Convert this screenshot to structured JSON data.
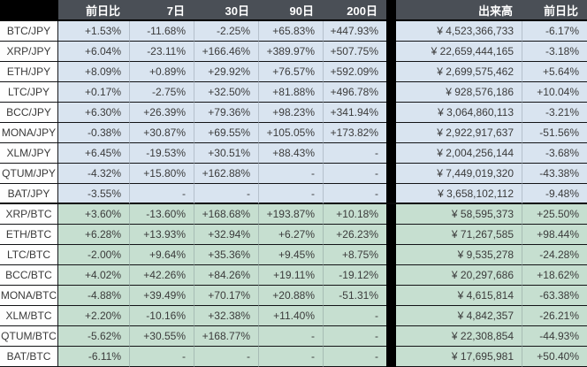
{
  "table": {
    "header": {
      "corner": "",
      "columns": [
        "前日比",
        "7日",
        "30日",
        "90日",
        "200日"
      ],
      "volume_columns": [
        "出来高",
        "前日比"
      ]
    },
    "rows": [
      {
        "pair": "BTC/JPY",
        "section": "jpy",
        "cells": [
          "+1.53%",
          "-11.68%",
          "-2.25%",
          "+65.83%",
          "+447.93%"
        ],
        "volume": "¥ 4,523,366,733",
        "volume_change": "-6.17%"
      },
      {
        "pair": "XRP/JPY",
        "section": "jpy",
        "cells": [
          "+6.04%",
          "-23.11%",
          "+166.46%",
          "+389.97%",
          "+507.75%"
        ],
        "volume": "¥ 22,659,444,165",
        "volume_change": "-3.18%"
      },
      {
        "pair": "ETH/JPY",
        "section": "jpy",
        "cells": [
          "+8.09%",
          "+0.89%",
          "+29.92%",
          "+76.57%",
          "+592.09%"
        ],
        "volume": "¥ 2,699,575,462",
        "volume_change": "+5.64%"
      },
      {
        "pair": "LTC/JPY",
        "section": "jpy",
        "cells": [
          "+0.17%",
          "-2.75%",
          "+32.50%",
          "+81.88%",
          "+496.78%"
        ],
        "volume": "¥ 928,576,186",
        "volume_change": "+10.04%"
      },
      {
        "pair": "BCC/JPY",
        "section": "jpy",
        "cells": [
          "+6.30%",
          "+26.39%",
          "+79.36%",
          "+98.23%",
          "+341.94%"
        ],
        "volume": "¥ 3,064,860,113",
        "volume_change": "-3.21%"
      },
      {
        "pair": "MONA/JPY",
        "section": "jpy",
        "cells": [
          "-0.38%",
          "+30.87%",
          "+69.55%",
          "+105.05%",
          "+173.82%"
        ],
        "volume": "¥ 2,922,917,637",
        "volume_change": "-51.56%"
      },
      {
        "pair": "XLM/JPY",
        "section": "jpy",
        "cells": [
          "+6.45%",
          "-19.53%",
          "+30.51%",
          "+88.43%",
          "-"
        ],
        "volume": "¥ 2,004,256,144",
        "volume_change": "-3.68%"
      },
      {
        "pair": "QTUM/JPY",
        "section": "jpy",
        "cells": [
          "-4.32%",
          "+15.80%",
          "+162.88%",
          "-",
          "-"
        ],
        "volume": "¥ 7,449,019,320",
        "volume_change": "-43.38%"
      },
      {
        "pair": "BAT/JPY",
        "section": "jpy",
        "cells": [
          "-3.55%",
          "-",
          "-",
          "-",
          "-"
        ],
        "volume": "¥ 3,658,102,112",
        "volume_change": "-9.48%"
      },
      {
        "pair": "XRP/BTC",
        "section": "btc",
        "cells": [
          "+3.60%",
          "-13.60%",
          "+168.68%",
          "+193.87%",
          "+10.18%"
        ],
        "volume": "¥ 58,595,373",
        "volume_change": "+25.50%"
      },
      {
        "pair": "ETH/BTC",
        "section": "btc",
        "cells": [
          "+6.28%",
          "+13.93%",
          "+32.94%",
          "+6.27%",
          "+26.23%"
        ],
        "volume": "¥ 71,267,585",
        "volume_change": "+98.44%"
      },
      {
        "pair": "LTC/BTC",
        "section": "btc",
        "cells": [
          "-2.00%",
          "+9.64%",
          "+35.36%",
          "+9.45%",
          "+8.75%"
        ],
        "volume": "¥ 9,535,278",
        "volume_change": "-24.28%"
      },
      {
        "pair": "BCC/BTC",
        "section": "btc",
        "cells": [
          "+4.02%",
          "+42.26%",
          "+84.26%",
          "+19.11%",
          "-19.12%"
        ],
        "volume": "¥ 20,297,686",
        "volume_change": "+18.62%"
      },
      {
        "pair": "MONA/BTC",
        "section": "btc",
        "cells": [
          "-4.88%",
          "+39.49%",
          "+70.17%",
          "+20.88%",
          "-51.31%"
        ],
        "volume": "¥ 4,615,814",
        "volume_change": "-63.38%"
      },
      {
        "pair": "XLM/BTC",
        "section": "btc",
        "cells": [
          "+2.20%",
          "-10.16%",
          "+32.38%",
          "+11.40%",
          "-"
        ],
        "volume": "¥ 4,842,357",
        "volume_change": "-26.21%"
      },
      {
        "pair": "QTUM/BTC",
        "section": "btc",
        "cells": [
          "-5.62%",
          "+30.55%",
          "+168.77%",
          "-",
          "-"
        ],
        "volume": "¥ 22,308,854",
        "volume_change": "-44.93%"
      },
      {
        "pair": "BAT/BTC",
        "section": "btc",
        "cells": [
          "-6.11%",
          "-",
          "-",
          "-",
          "-"
        ],
        "volume": "¥ 17,695,981",
        "volume_change": "+50.40%"
      }
    ]
  },
  "colors": {
    "background": "#000000",
    "header_bg": "#4a4f56",
    "header_text": "#ffffff",
    "jpy_row_bg": "#d9e4f0",
    "btc_row_bg": "#c6dfd0",
    "label_bg": "#fefefe",
    "cell_text": "#3b3b3b"
  }
}
